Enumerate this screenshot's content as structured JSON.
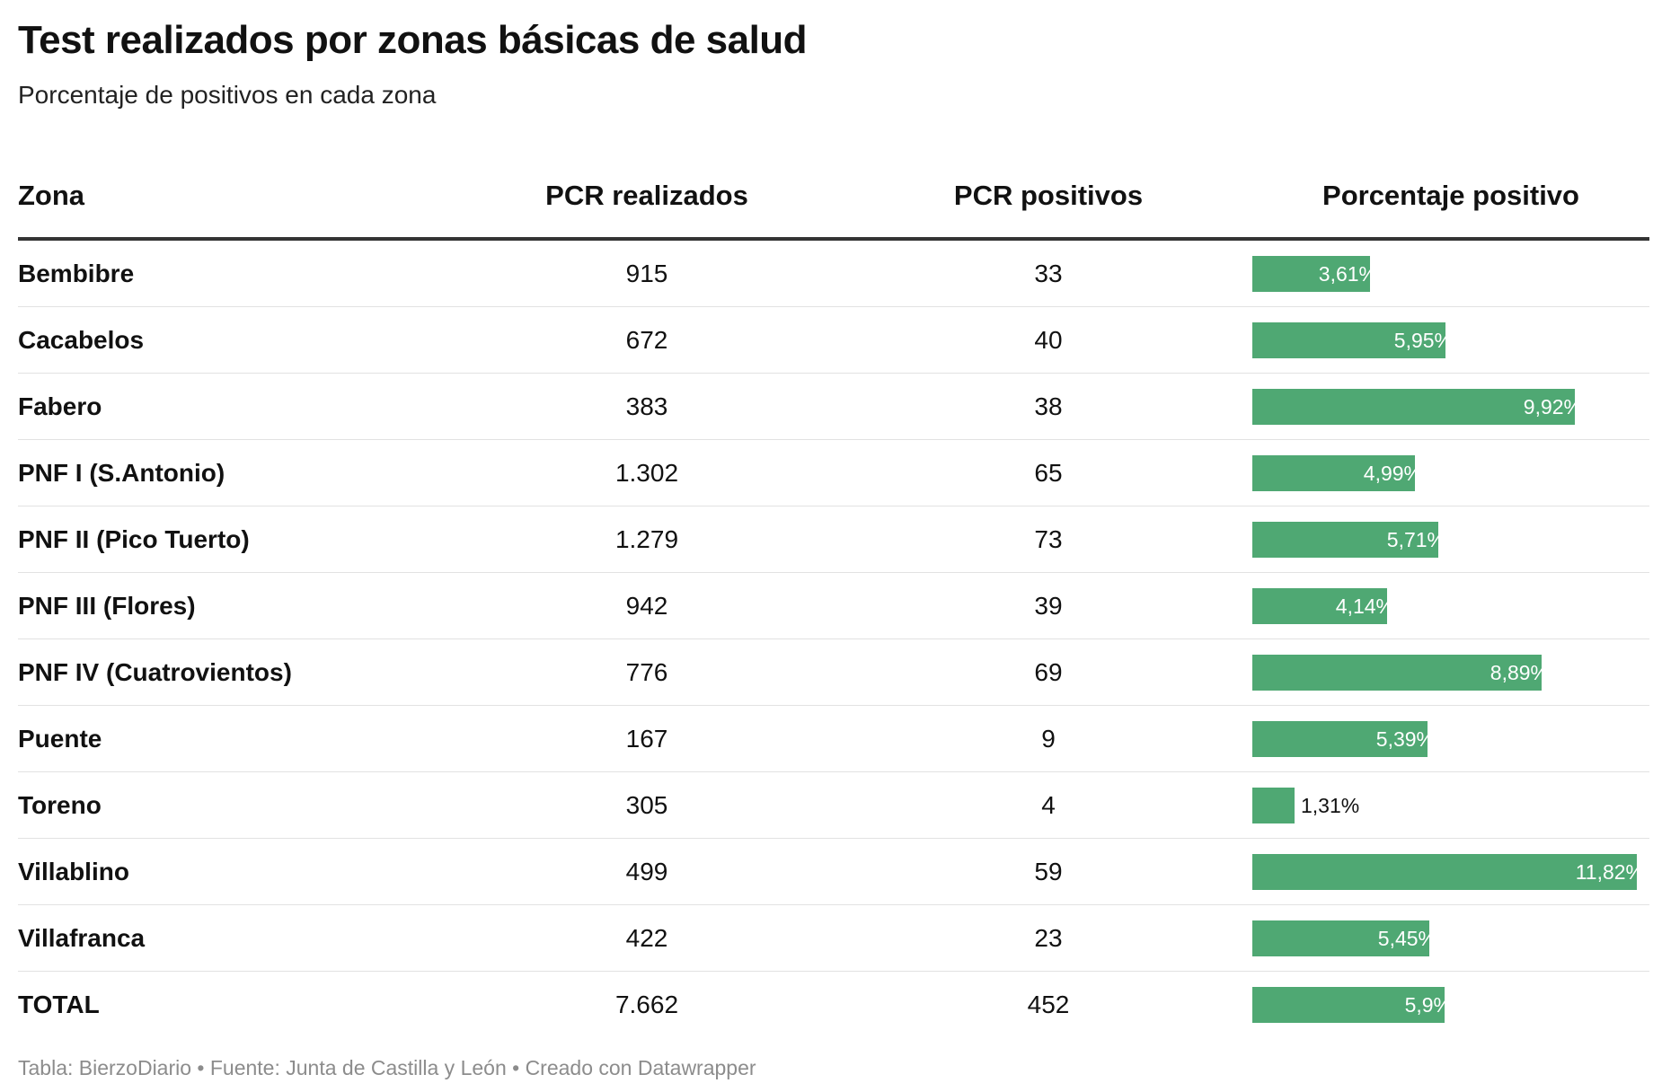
{
  "chart_data": {
    "type": "table",
    "title": "Test realizados por zonas básicas de salud",
    "subtitle": "Porcentaje de positivos en cada zona",
    "columns": [
      "Zona",
      "PCR realizados",
      "PCR positivos",
      "Porcentaje positivo"
    ],
    "rows": [
      {
        "zona": "Bembibre",
        "pcr_realizados": "915",
        "pcr_positivos": "33",
        "porcentaje": 3.61,
        "porcentaje_label": "3,61%"
      },
      {
        "zona": "Cacabelos",
        "pcr_realizados": "672",
        "pcr_positivos": "40",
        "porcentaje": 5.95,
        "porcentaje_label": "5,95%"
      },
      {
        "zona": "Fabero",
        "pcr_realizados": "383",
        "pcr_positivos": "38",
        "porcentaje": 9.92,
        "porcentaje_label": "9,92%"
      },
      {
        "zona": "PNF I (S.Antonio)",
        "pcr_realizados": "1.302",
        "pcr_positivos": "65",
        "porcentaje": 4.99,
        "porcentaje_label": "4,99%"
      },
      {
        "zona": "PNF II (Pico Tuerto)",
        "pcr_realizados": "1.279",
        "pcr_positivos": "73",
        "porcentaje": 5.71,
        "porcentaje_label": "5,71%"
      },
      {
        "zona": "PNF III (Flores)",
        "pcr_realizados": "942",
        "pcr_positivos": "39",
        "porcentaje": 4.14,
        "porcentaje_label": "4,14%"
      },
      {
        "zona": "PNF IV (Cuatrovientos)",
        "pcr_realizados": "776",
        "pcr_positivos": "69",
        "porcentaje": 8.89,
        "porcentaje_label": "8,89%"
      },
      {
        "zona": "Puente",
        "pcr_realizados": "167",
        "pcr_positivos": "9",
        "porcentaje": 5.39,
        "porcentaje_label": "5,39%"
      },
      {
        "zona": "Toreno",
        "pcr_realizados": "305",
        "pcr_positivos": "4",
        "porcentaje": 1.31,
        "porcentaje_label": "1,31%"
      },
      {
        "zona": "Villablino",
        "pcr_realizados": "499",
        "pcr_positivos": "59",
        "porcentaje": 11.82,
        "porcentaje_label": "11,82%"
      },
      {
        "zona": "Villafranca",
        "pcr_realizados": "422",
        "pcr_positivos": "23",
        "porcentaje": 5.45,
        "porcentaje_label": "5,45%"
      },
      {
        "zona": "TOTAL",
        "pcr_realizados": "7.662",
        "pcr_positivos": "452",
        "porcentaje": 5.9,
        "porcentaje_label": "5,9%"
      }
    ],
    "bar_max": 11.82,
    "bar_color": "#4fa873"
  },
  "footer": "Tabla: BierzoDiario • Fuente: Junta de Castilla y León • Creado con Datawrapper"
}
